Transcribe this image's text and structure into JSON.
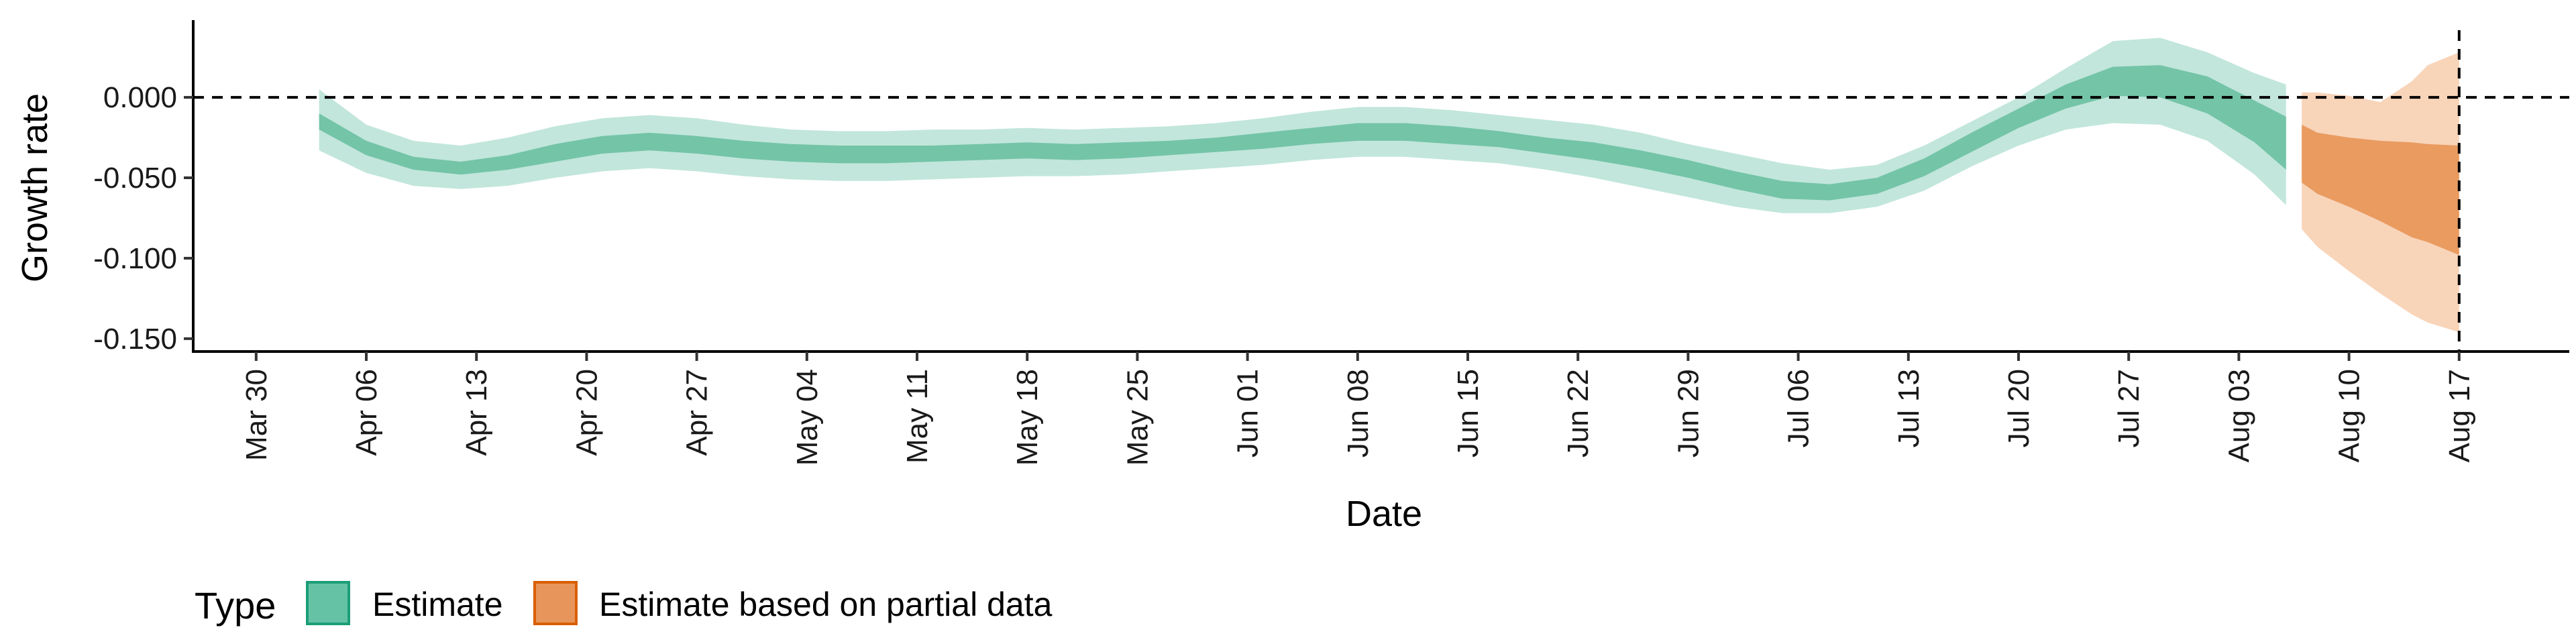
{
  "chart_data": {
    "type": "area",
    "xlabel": "Date",
    "ylabel": "Growth rate",
    "ylim": [
      -0.158,
      0.048
    ],
    "yticks": [
      0.0,
      -0.05,
      -0.1,
      -0.15
    ],
    "ytick_labels": [
      "0.000",
      "-0.050",
      "-0.100",
      "-0.150"
    ],
    "xlim": [
      "2021-03-26",
      "2021-08-24"
    ],
    "xticks": [
      "2021-03-30",
      "2021-04-06",
      "2021-04-13",
      "2021-04-20",
      "2021-04-27",
      "2021-05-04",
      "2021-05-11",
      "2021-05-18",
      "2021-05-25",
      "2021-06-01",
      "2021-06-08",
      "2021-06-15",
      "2021-06-22",
      "2021-06-29",
      "2021-07-06",
      "2021-07-13",
      "2021-07-20",
      "2021-07-27",
      "2021-08-03",
      "2021-08-10",
      "2021-08-17"
    ],
    "xtick_labels": [
      "Mar 30",
      "Apr 06",
      "Apr 13",
      "Apr 20",
      "Apr 27",
      "May 04",
      "May 11",
      "May 18",
      "May 25",
      "Jun 01",
      "Jun 08",
      "Jun 15",
      "Jun 22",
      "Jun 29",
      "Jul 06",
      "Jul 13",
      "Jul 20",
      "Jul 27",
      "Aug 03",
      "Aug 10",
      "Aug 17"
    ],
    "reference_lines": {
      "horizontal_y": 0.0,
      "vertical_x": "2021-08-17",
      "style": "dashed"
    },
    "legend": {
      "title": "Type",
      "position": "bottom-left"
    },
    "grid": false,
    "series": [
      {
        "name": "Estimate",
        "color": "#66c2a5",
        "x": [
          "2021-04-03",
          "2021-04-06",
          "2021-04-09",
          "2021-04-12",
          "2021-04-15",
          "2021-04-18",
          "2021-04-21",
          "2021-04-24",
          "2021-04-27",
          "2021-04-30",
          "2021-05-03",
          "2021-05-06",
          "2021-05-09",
          "2021-05-12",
          "2021-05-15",
          "2021-05-18",
          "2021-05-21",
          "2021-05-24",
          "2021-05-27",
          "2021-05-30",
          "2021-06-02",
          "2021-06-05",
          "2021-06-08",
          "2021-06-11",
          "2021-06-14",
          "2021-06-17",
          "2021-06-20",
          "2021-06-23",
          "2021-06-26",
          "2021-06-29",
          "2021-07-02",
          "2021-07-05",
          "2021-07-08",
          "2021-07-11",
          "2021-07-14",
          "2021-07-17",
          "2021-07-20",
          "2021-07-23",
          "2021-07-26",
          "2021-07-29",
          "2021-08-01",
          "2021-08-04",
          "2021-08-06"
        ],
        "upper_90": [
          0.005,
          -0.017,
          -0.027,
          -0.03,
          -0.025,
          -0.018,
          -0.013,
          -0.011,
          -0.013,
          -0.017,
          -0.02,
          -0.021,
          -0.021,
          -0.02,
          -0.02,
          -0.019,
          -0.02,
          -0.019,
          -0.018,
          -0.016,
          -0.013,
          -0.009,
          -0.006,
          -0.006,
          -0.008,
          -0.011,
          -0.014,
          -0.017,
          -0.022,
          -0.029,
          -0.035,
          -0.041,
          -0.045,
          -0.042,
          -0.03,
          -0.015,
          0.0,
          0.018,
          0.035,
          0.037,
          0.028,
          0.015,
          0.008
        ],
        "upper_50": [
          -0.01,
          -0.027,
          -0.037,
          -0.04,
          -0.036,
          -0.029,
          -0.024,
          -0.022,
          -0.024,
          -0.027,
          -0.029,
          -0.03,
          -0.03,
          -0.03,
          -0.029,
          -0.028,
          -0.029,
          -0.028,
          -0.027,
          -0.025,
          -0.022,
          -0.019,
          -0.016,
          -0.016,
          -0.018,
          -0.021,
          -0.025,
          -0.028,
          -0.033,
          -0.039,
          -0.046,
          -0.052,
          -0.054,
          -0.05,
          -0.038,
          -0.022,
          -0.007,
          0.008,
          0.019,
          0.02,
          0.013,
          -0.002,
          -0.012
        ],
        "lower_50": [
          -0.02,
          -0.036,
          -0.045,
          -0.048,
          -0.045,
          -0.04,
          -0.035,
          -0.033,
          -0.035,
          -0.038,
          -0.04,
          -0.041,
          -0.041,
          -0.04,
          -0.039,
          -0.038,
          -0.039,
          -0.038,
          -0.036,
          -0.034,
          -0.032,
          -0.029,
          -0.027,
          -0.027,
          -0.029,
          -0.031,
          -0.035,
          -0.039,
          -0.044,
          -0.05,
          -0.057,
          -0.063,
          -0.064,
          -0.06,
          -0.049,
          -0.034,
          -0.019,
          -0.007,
          0.001,
          0.0,
          -0.01,
          -0.028,
          -0.045
        ],
        "lower_90": [
          -0.033,
          -0.047,
          -0.055,
          -0.057,
          -0.055,
          -0.05,
          -0.046,
          -0.044,
          -0.046,
          -0.049,
          -0.051,
          -0.052,
          -0.052,
          -0.051,
          -0.05,
          -0.049,
          -0.049,
          -0.048,
          -0.046,
          -0.044,
          -0.042,
          -0.039,
          -0.037,
          -0.037,
          -0.039,
          -0.041,
          -0.045,
          -0.05,
          -0.056,
          -0.062,
          -0.068,
          -0.072,
          -0.072,
          -0.068,
          -0.058,
          -0.043,
          -0.03,
          -0.02,
          -0.016,
          -0.017,
          -0.027,
          -0.048,
          -0.067
        ]
      },
      {
        "name": "Estimate based on partial data",
        "color": "#fc8d62",
        "x": [
          "2021-08-07",
          "2021-08-08",
          "2021-08-10",
          "2021-08-12",
          "2021-08-14",
          "2021-08-15",
          "2021-08-17"
        ],
        "upper_90": [
          0.003,
          0.003,
          0.001,
          -0.003,
          0.01,
          0.02,
          0.028
        ],
        "upper_50": [
          -0.017,
          -0.022,
          -0.025,
          -0.027,
          -0.028,
          -0.029,
          -0.03
        ],
        "lower_50": [
          -0.053,
          -0.06,
          -0.068,
          -0.077,
          -0.087,
          -0.09,
          -0.098
        ],
        "lower_90": [
          -0.082,
          -0.093,
          -0.108,
          -0.122,
          -0.135,
          -0.14,
          -0.146
        ]
      }
    ]
  },
  "legend_items": {
    "title": "Type",
    "estimate": "Estimate",
    "partial": "Estimate based on partial data"
  }
}
